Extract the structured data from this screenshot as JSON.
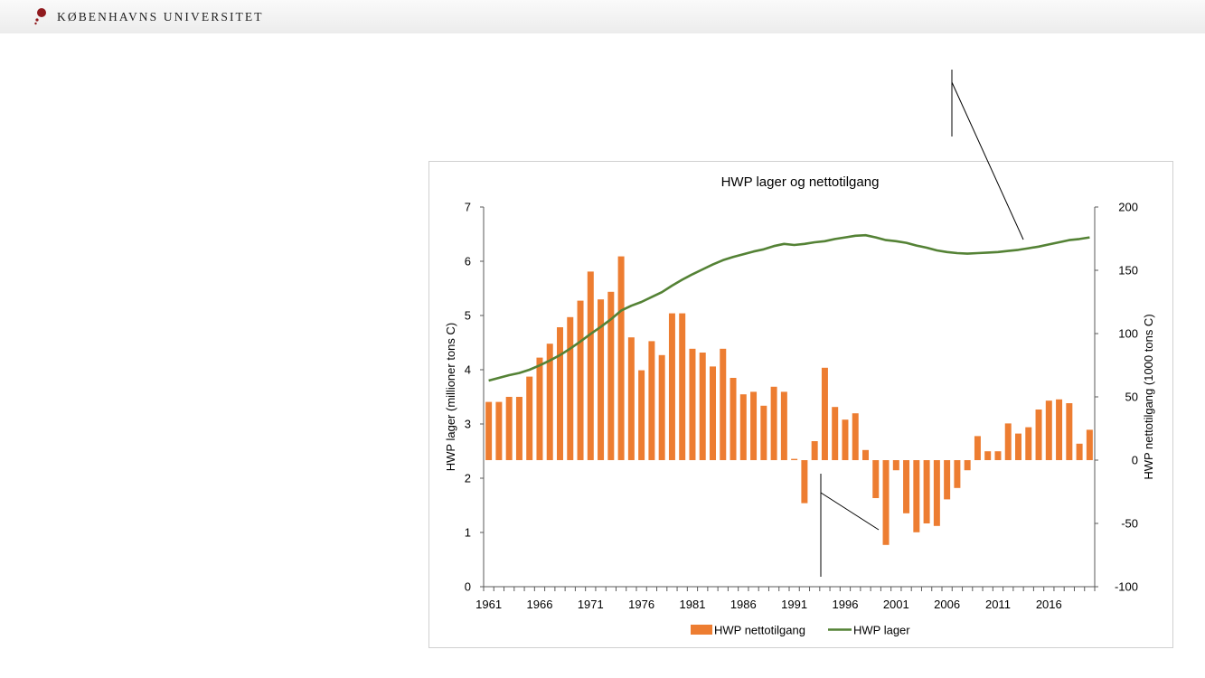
{
  "header": {
    "brand": "KØBENHAVNS UNIVERSITET",
    "logo_icon": "university-seal-icon"
  },
  "colors": {
    "bar": "#ED7D31",
    "line": "#548235",
    "axis": "#595959",
    "text": "#000000"
  },
  "chart_data": {
    "type": "bar",
    "title": "HWP lager og nettotilgang",
    "x": [
      1961,
      1962,
      1963,
      1964,
      1965,
      1966,
      1967,
      1968,
      1969,
      1970,
      1971,
      1972,
      1973,
      1974,
      1975,
      1976,
      1977,
      1978,
      1979,
      1980,
      1981,
      1982,
      1983,
      1984,
      1985,
      1986,
      1987,
      1988,
      1989,
      1990,
      1991,
      1992,
      1993,
      1994,
      1995,
      1996,
      1997,
      1998,
      1999,
      2000,
      2001,
      2002,
      2003,
      2004,
      2005,
      2006,
      2007,
      2008,
      2009,
      2010,
      2011,
      2012,
      2013,
      2014,
      2015,
      2016,
      2017,
      2018,
      2019,
      2020
    ],
    "xtick_labels": [
      "1961",
      "1966",
      "1971",
      "1976",
      "1981",
      "1986",
      "1991",
      "1996",
      "2001",
      "2006",
      "2011",
      "2016"
    ],
    "ylabel": "HWP lager (millioner tons C)",
    "ylim": [
      0,
      7
    ],
    "yticks": [
      "0",
      "1",
      "2",
      "3",
      "4",
      "5",
      "6",
      "7"
    ],
    "y2label": "HWP nettotilgang (1000 tons C)",
    "y2lim": [
      -100,
      200
    ],
    "y2ticks": [
      "-100",
      "-50",
      "0",
      "50",
      "100",
      "150",
      "200"
    ],
    "series": [
      {
        "name": "HWP nettotilgang",
        "type": "bar",
        "axis": "right",
        "values": [
          46,
          46,
          50,
          50,
          66,
          81,
          92,
          105,
          113,
          126,
          149,
          127,
          133,
          161,
          97,
          71,
          94,
          83,
          116,
          116,
          88,
          85,
          74,
          88,
          65,
          52,
          54,
          43,
          58,
          54,
          1,
          -34,
          15,
          73,
          42,
          32,
          37,
          8,
          -30,
          -67,
          -8,
          -42,
          -57,
          -50,
          -52,
          -31,
          -22,
          -8,
          19,
          7,
          7,
          29,
          21,
          26,
          40,
          47,
          48,
          45,
          13,
          24
        ]
      },
      {
        "name": "HWP lager",
        "type": "line",
        "axis": "left",
        "values": [
          3.8,
          3.85,
          3.9,
          3.94,
          4.0,
          4.08,
          4.17,
          4.27,
          4.39,
          4.52,
          4.66,
          4.79,
          4.93,
          5.09,
          5.18,
          5.25,
          5.34,
          5.43,
          5.55,
          5.66,
          5.76,
          5.85,
          5.94,
          6.02,
          6.08,
          6.13,
          6.18,
          6.22,
          6.28,
          6.32,
          6.3,
          6.32,
          6.35,
          6.37,
          6.41,
          6.44,
          6.47,
          6.48,
          6.44,
          6.39,
          6.37,
          6.34,
          6.29,
          6.25,
          6.2,
          6.17,
          6.15,
          6.14,
          6.15,
          6.16,
          6.17,
          6.19,
          6.21,
          6.24,
          6.27,
          6.31,
          6.35,
          6.39,
          6.41,
          6.44
        ]
      }
    ],
    "legend": [
      "HWP nettotilgang",
      "HWP lager"
    ],
    "legend_position": "bottom"
  }
}
